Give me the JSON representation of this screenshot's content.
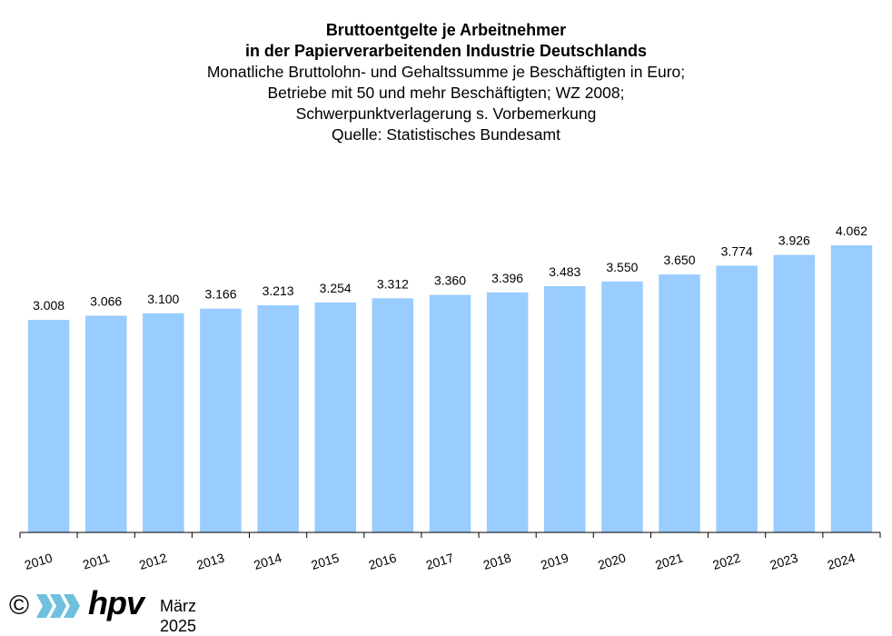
{
  "chart_data": {
    "type": "bar",
    "title_lines": [
      "Bruttoentgelte je Arbeitnehmer",
      "in der Papierverarbeitenden Industrie Deutschlands"
    ],
    "subtitle_lines": [
      "Monatliche Bruttolohn- und Gehaltssumme je Beschäftigten in Euro;",
      "Betriebe mit 50 und mehr Beschäftigten; WZ 2008;",
      "Schwerpunktverlagerung s. Vorbemerkung",
      "Quelle: Statistisches Bundesamt"
    ],
    "categories": [
      "2010",
      "2011",
      "2012",
      "2013",
      "2014",
      "2015",
      "2016",
      "2017",
      "2018",
      "2019",
      "2020",
      "2021",
      "2022",
      "2023",
      "2024"
    ],
    "values": [
      3008,
      3066,
      3100,
      3166,
      3213,
      3254,
      3312,
      3360,
      3396,
      3483,
      3550,
      3650,
      3774,
      3926,
      4062
    ],
    "value_labels": [
      "3.008",
      "3.066",
      "3.100",
      "3.166",
      "3.213",
      "3.254",
      "3.312",
      "3.360",
      "3.396",
      "3.483",
      "3.550",
      "3.650",
      "3.774",
      "3.926",
      "4.062"
    ],
    "ylim": [
      0,
      4500
    ],
    "grid": false,
    "bar_color": "#99ccff"
  },
  "footer": {
    "copyright_symbol": "©",
    "logo_text": "hpv",
    "date": "März 2025",
    "logo_color": "#6fc0dd"
  }
}
